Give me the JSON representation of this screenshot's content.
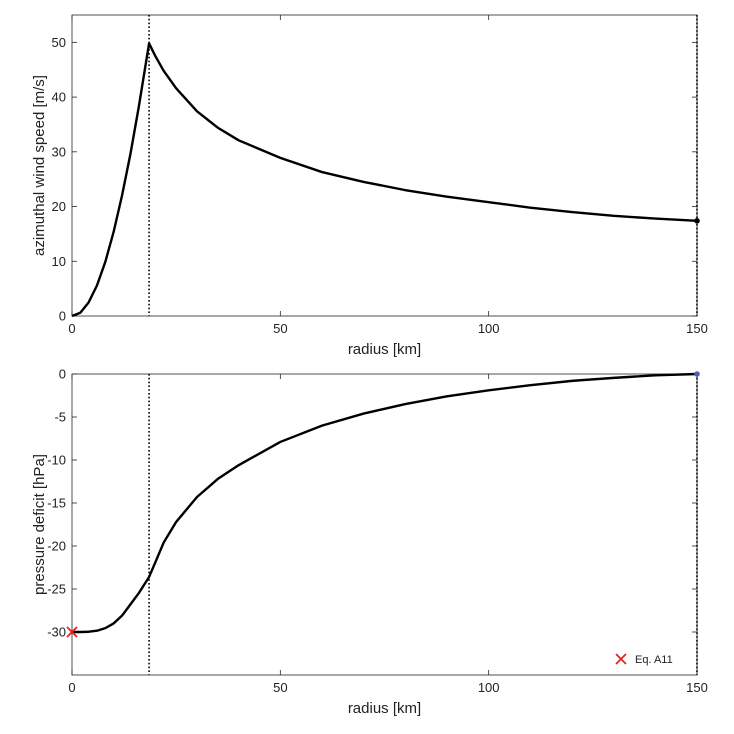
{
  "chart_data": [
    {
      "type": "line",
      "xlabel": "radius [km]",
      "ylabel": "azimuthal wind speed [m/s]",
      "xlim": [
        0,
        150
      ],
      "ylim": [
        0,
        55
      ],
      "xticks": [
        0,
        50,
        100,
        150
      ],
      "yticks": [
        0,
        10,
        20,
        30,
        40,
        50
      ],
      "grid": false,
      "vlines": [
        18.5,
        150
      ],
      "series": [
        {
          "x": [
            0,
            2,
            4,
            6,
            8,
            10,
            12,
            14,
            16,
            18.5,
            20,
            22,
            25,
            30,
            35,
            40,
            50,
            60,
            70,
            80,
            90,
            100,
            110,
            120,
            130,
            140,
            150
          ],
          "y": [
            0,
            0.6,
            2.5,
            5.6,
            9.9,
            15.4,
            22.0,
            29.5,
            38.1,
            49.8,
            47.5,
            44.8,
            41.6,
            37.4,
            34.4,
            32.1,
            28.9,
            26.3,
            24.5,
            23.0,
            21.8,
            20.8,
            19.8,
            19.0,
            18.3,
            17.8,
            17.4
          ],
          "color": "#000000"
        }
      ],
      "markers": [
        {
          "x": 150,
          "y": 17.4,
          "color": "#000000"
        }
      ]
    },
    {
      "type": "line",
      "xlabel": "radius [km]",
      "ylabel": "pressure deficit [hPa]",
      "xlim": [
        0,
        150
      ],
      "ylim": [
        -35,
        0
      ],
      "xticks": [
        0,
        50,
        100,
        150
      ],
      "yticks": [
        0,
        -5,
        -10,
        -15,
        -20,
        -25,
        -30
      ],
      "grid": false,
      "vlines": [
        18.5,
        150
      ],
      "series": [
        {
          "x": [
            0,
            2,
            4,
            6,
            8,
            10,
            12,
            14,
            16,
            18.5,
            20,
            22,
            25,
            30,
            35,
            40,
            50,
            60,
            70,
            80,
            90,
            100,
            110,
            120,
            130,
            140,
            150
          ],
          "y": [
            -30,
            -30,
            -29.97,
            -29.85,
            -29.55,
            -29.0,
            -28.1,
            -26.8,
            -25.5,
            -23.6,
            -21.9,
            -19.6,
            -17.2,
            -14.3,
            -12.2,
            -10.6,
            -7.9,
            -6.0,
            -4.6,
            -3.5,
            -2.6,
            -1.9,
            -1.3,
            -0.8,
            -0.45,
            -0.15,
            0
          ],
          "color": "#000000"
        }
      ],
      "markers": [
        {
          "x": 150,
          "y": 0,
          "color": "#4a5fb5"
        },
        {
          "x": 0,
          "y": -30,
          "color": "#e8211e",
          "symbol": "x",
          "label": "Eq. A11"
        }
      ],
      "legend": {
        "placement": "bottom-right",
        "entries": [
          "Eq. A11"
        ]
      }
    }
  ]
}
